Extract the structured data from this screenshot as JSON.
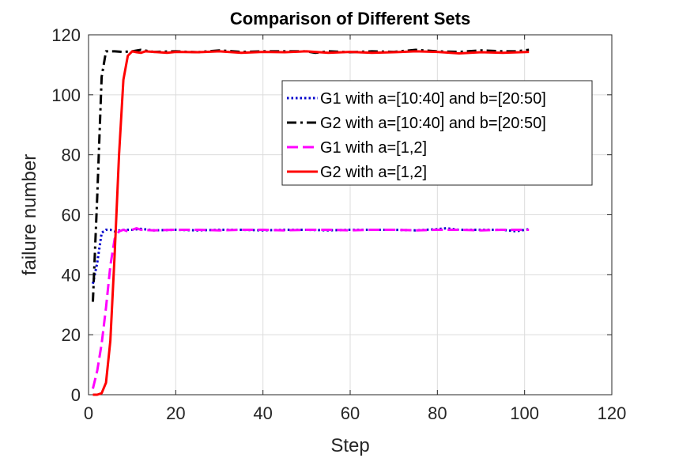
{
  "chart_data": {
    "type": "line",
    "title": "Comparison of Different Sets",
    "xlabel": "Step",
    "ylabel": "failure number",
    "xlim": [
      0,
      120
    ],
    "ylim": [
      0,
      120
    ],
    "xticks": [
      0,
      20,
      40,
      60,
      80,
      100,
      120
    ],
    "yticks": [
      0,
      20,
      40,
      60,
      80,
      100,
      120
    ],
    "xtick_labels": [
      "0",
      "20",
      "40",
      "60",
      "80",
      "100",
      "120"
    ],
    "ytick_labels": [
      "0",
      "20",
      "40",
      "60",
      "80",
      "100",
      "120"
    ],
    "grid": true,
    "legend_position": "top-right",
    "series": [
      {
        "name": "G1 with a=[10:40] and b=[20:50]",
        "color": "#0000cc",
        "style": "dotted",
        "x": [
          1,
          2,
          3,
          4,
          5,
          6,
          8,
          10,
          12,
          15,
          20,
          25,
          30,
          35,
          40,
          45,
          50,
          55,
          60,
          65,
          70,
          75,
          80,
          82,
          85,
          90,
          95,
          98,
          101
        ],
        "y": [
          37,
          44,
          54,
          55,
          55,
          54.5,
          55,
          55,
          55.3,
          54.8,
          55,
          54.8,
          55,
          55,
          54.8,
          55,
          55,
          54.8,
          55,
          55,
          55,
          54.8,
          55.2,
          55.5,
          55,
          55,
          55,
          54.5,
          55.2
        ]
      },
      {
        "name": "G2 with a=[10:40] and b=[20:50]",
        "color": "#000000",
        "style": "dashdot",
        "x": [
          1,
          2,
          3,
          4,
          5,
          6,
          8,
          10,
          12,
          15,
          20,
          25,
          30,
          35,
          40,
          45,
          50,
          52,
          55,
          60,
          65,
          70,
          75,
          80,
          85,
          90,
          95,
          98,
          101
        ],
        "y": [
          31,
          66,
          106,
          114.5,
          114.5,
          114.5,
          114.3,
          114.5,
          115,
          114.3,
          114.5,
          114.2,
          114.8,
          114.3,
          114.5,
          114.5,
          114.5,
          114,
          114.5,
          114.2,
          114.5,
          114.3,
          115,
          114.5,
          114.3,
          114.8,
          114.5,
          114.5,
          115
        ]
      },
      {
        "name": "G1 with a=[1,2]",
        "color": "#ff00ff",
        "style": "dashed",
        "x": [
          1,
          2,
          3,
          4,
          5,
          6,
          7,
          8,
          9,
          10,
          11,
          12,
          15,
          20,
          25,
          30,
          35,
          40,
          45,
          50,
          55,
          60,
          65,
          70,
          75,
          80,
          85,
          90,
          95,
          101
        ],
        "y": [
          2,
          8,
          17,
          29,
          43,
          52,
          54.5,
          55,
          54.5,
          55,
          55.5,
          55,
          54.8,
          55,
          55,
          54.8,
          55,
          55,
          54.8,
          55,
          55,
          54.8,
          55,
          55,
          54.8,
          55,
          55,
          54.8,
          55,
          55
        ]
      },
      {
        "name": "G2 with a=[1,2]",
        "color": "#ff0000",
        "style": "solid",
        "x": [
          1,
          2,
          3,
          4,
          5,
          6,
          7,
          8,
          9,
          10,
          11,
          12,
          13,
          15,
          18,
          20,
          25,
          30,
          35,
          40,
          45,
          50,
          55,
          60,
          65,
          70,
          75,
          80,
          85,
          90,
          95,
          101
        ],
        "y": [
          0,
          0,
          0.5,
          4,
          18,
          47,
          80,
          105,
          113,
          114.5,
          114.2,
          114,
          114.5,
          114.3,
          114,
          114.3,
          114.2,
          114.5,
          114,
          114.3,
          114.2,
          114.5,
          114,
          114.3,
          114,
          114.2,
          114.5,
          114.3,
          113.8,
          114.2,
          114,
          114.3
        ]
      }
    ]
  }
}
